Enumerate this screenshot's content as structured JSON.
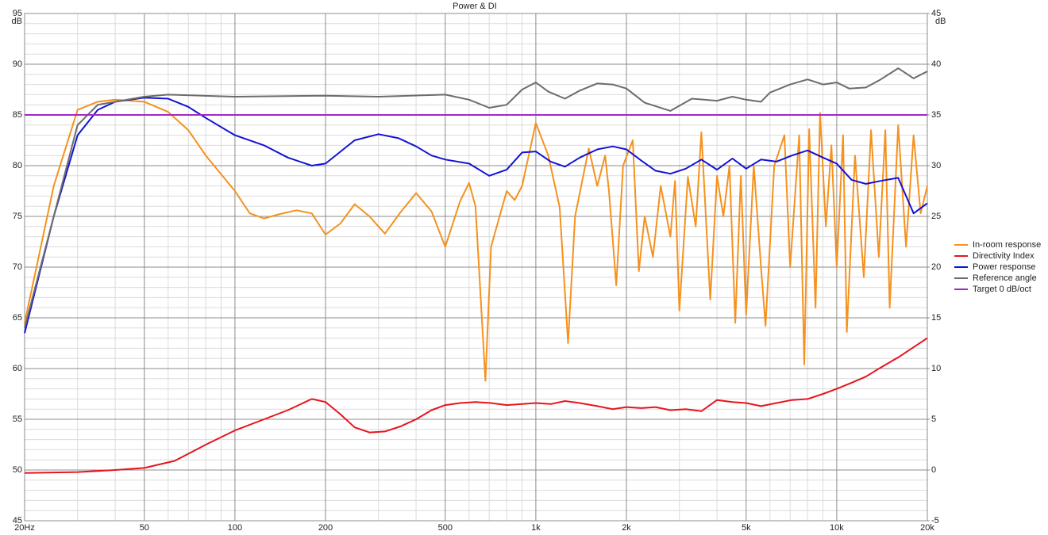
{
  "chart_data": {
    "type": "line",
    "title": "Power & DI",
    "y_unit": "dB",
    "y2_unit": "dB",
    "xscale": "log",
    "grid": true,
    "legend": "right",
    "xlim": [
      20,
      20000
    ],
    "xticks": [
      {
        "value": 20,
        "label": "20Hz"
      },
      50,
      100,
      200,
      500,
      {
        "value": 1000,
        "label": "1k"
      },
      {
        "value": 2000,
        "label": "2k"
      },
      {
        "value": 5000,
        "label": "5k"
      },
      {
        "value": 10000,
        "label": "10k"
      },
      {
        "value": 20000,
        "label": "20k"
      }
    ],
    "xminor": [
      30,
      40,
      60,
      70,
      80,
      90,
      300,
      400,
      600,
      700,
      800,
      900,
      3000,
      4000,
      6000,
      7000,
      8000,
      9000
    ],
    "ylim": [
      45,
      95
    ],
    "yticks": [
      45,
      50,
      55,
      60,
      65,
      70,
      75,
      80,
      85,
      90,
      95
    ],
    "yminor": [
      46,
      47,
      48,
      49,
      51,
      52,
      53,
      54,
      56,
      57,
      58,
      59,
      61,
      62,
      63,
      64,
      66,
      67,
      68,
      69,
      71,
      72,
      73,
      74,
      76,
      77,
      78,
      79,
      81,
      82,
      83,
      84,
      86,
      87,
      88,
      89,
      91,
      92,
      93,
      94
    ],
    "y2lim": [
      -5,
      45
    ],
    "y2ticks": [
      -5,
      0,
      5,
      10,
      15,
      20,
      25,
      30,
      35,
      40,
      45
    ],
    "series": [
      {
        "name": "In-room response",
        "color": "#f5921e",
        "x": [
          20,
          25,
          30,
          35,
          40,
          50,
          60,
          70,
          80,
          100,
          112,
          125,
          140,
          160,
          180,
          200,
          224,
          250,
          280,
          315,
          355,
          400,
          450,
          500,
          560,
          600,
          630,
          680,
          710,
          800,
          850,
          900,
          1000,
          1100,
          1200,
          1280,
          1350,
          1500,
          1600,
          1700,
          1750,
          1850,
          1950,
          2100,
          2200,
          2300,
          2450,
          2600,
          2800,
          2900,
          3000,
          3200,
          3400,
          3550,
          3800,
          4000,
          4200,
          4400,
          4600,
          4800,
          5000,
          5300,
          5600,
          5800,
          6200,
          6700,
          7000,
          7500,
          7800,
          8100,
          8500,
          8800,
          9200,
          9600,
          10000,
          10500,
          10800,
          11500,
          12300,
          13000,
          13800,
          14500,
          15000,
          16000,
          17000,
          18000,
          19000,
          20000
        ],
        "values": [
          64.5,
          78,
          85.5,
          86.3,
          86.5,
          86.3,
          85.3,
          83.5,
          81,
          77.5,
          75.3,
          74.8,
          75.2,
          75.6,
          75.3,
          73.2,
          74.3,
          76.2,
          75,
          73.3,
          75.4,
          77.3,
          75.5,
          72,
          76.5,
          78.3,
          76,
          58.8,
          72,
          77.5,
          76.6,
          78,
          84.2,
          81,
          75.9,
          62.5,
          75,
          81.7,
          78,
          81,
          77.5,
          68.2,
          80,
          82.5,
          69.6,
          75,
          71,
          78,
          73,
          78.5,
          65.7,
          78.9,
          74,
          83.3,
          66.8,
          79,
          75,
          80,
          64.5,
          79,
          65.3,
          80,
          70,
          64.2,
          80,
          83,
          70,
          83,
          60.4,
          83.6,
          66,
          85.2,
          74,
          82,
          70,
          83,
          63.6,
          81,
          69,
          83.5,
          71,
          83.5,
          66,
          84,
          72,
          83,
          75.3,
          78
        ]
      },
      {
        "name": "Directivity Index",
        "color": "#e8141c",
        "axis": "y2",
        "x": [
          20,
          30,
          40,
          50,
          63,
          80,
          100,
          125,
          150,
          180,
          200,
          224,
          250,
          280,
          315,
          355,
          400,
          450,
          500,
          560,
          630,
          710,
          800,
          900,
          1000,
          1120,
          1250,
          1400,
          1600,
          1800,
          2000,
          2240,
          2500,
          2800,
          3150,
          3550,
          4000,
          4500,
          5000,
          5600,
          6300,
          7100,
          8000,
          9000,
          10000,
          11200,
          12500,
          14000,
          16000,
          18000,
          20000
        ],
        "values": [
          -0.3,
          -0.2,
          0,
          0.2,
          0.9,
          2.5,
          3.9,
          5,
          5.9,
          7,
          6.7,
          5.5,
          4.2,
          3.7,
          3.8,
          4.3,
          5,
          5.9,
          6.4,
          6.6,
          6.7,
          6.6,
          6.4,
          6.5,
          6.6,
          6.5,
          6.8,
          6.6,
          6.3,
          6,
          6.2,
          6.1,
          6.2,
          5.9,
          6,
          5.8,
          6.9,
          6.7,
          6.6,
          6.3,
          6.6,
          6.9,
          7,
          7.5,
          8,
          8.6,
          9.2,
          10.1,
          11.1,
          12.1,
          13
        ]
      },
      {
        "name": "Power response",
        "color": "#1212d6",
        "x": [
          20,
          25,
          30,
          35,
          40,
          50,
          60,
          70,
          80,
          100,
          125,
          150,
          180,
          200,
          250,
          300,
          350,
          400,
          450,
          500,
          600,
          700,
          800,
          900,
          1000,
          1120,
          1250,
          1400,
          1600,
          1800,
          2000,
          2240,
          2500,
          2800,
          3150,
          3550,
          4000,
          4500,
          5000,
          5600,
          6300,
          7100,
          8000,
          9000,
          10000,
          11200,
          12500,
          14000,
          16000,
          18000,
          20000
        ],
        "values": [
          63.5,
          75,
          83,
          85.5,
          86.3,
          86.7,
          86.6,
          85.8,
          84.7,
          83,
          82,
          80.8,
          80,
          80.2,
          82.5,
          83.1,
          82.7,
          81.9,
          81,
          80.6,
          80.2,
          79,
          79.6,
          81.3,
          81.4,
          80.4,
          79.9,
          80.8,
          81.6,
          81.9,
          81.6,
          80.5,
          79.5,
          79.2,
          79.7,
          80.6,
          79.6,
          80.7,
          79.7,
          80.6,
          80.4,
          81,
          81.5,
          80.8,
          80.2,
          78.6,
          78.2,
          78.5,
          78.8,
          75.3,
          76.3
        ]
      },
      {
        "name": "Reference angle",
        "color": "#6c6c6c",
        "x": [
          20,
          25,
          30,
          35,
          50,
          60,
          100,
          200,
          300,
          500,
          600,
          700,
          800,
          900,
          1000,
          1100,
          1250,
          1400,
          1600,
          1800,
          2000,
          2300,
          2800,
          3300,
          4000,
          4500,
          5000,
          5600,
          6000,
          7000,
          8000,
          9000,
          10000,
          11000,
          12500,
          14000,
          16000,
          18000,
          20000
        ],
        "values": [
          64,
          75,
          84,
          86,
          86.8,
          87,
          86.8,
          86.9,
          86.8,
          87,
          86.5,
          85.7,
          86,
          87.5,
          88.2,
          87.3,
          86.6,
          87.4,
          88.1,
          88,
          87.6,
          86.2,
          85.4,
          86.6,
          86.4,
          86.8,
          86.5,
          86.3,
          87.2,
          88,
          88.5,
          88,
          88.2,
          87.6,
          87.7,
          88.5,
          89.6,
          88.6,
          89.3
        ]
      },
      {
        "name": "Target 0 dB/oct",
        "color": "#a526c8",
        "x": [
          20,
          20000
        ],
        "values": [
          85,
          85
        ]
      }
    ]
  }
}
